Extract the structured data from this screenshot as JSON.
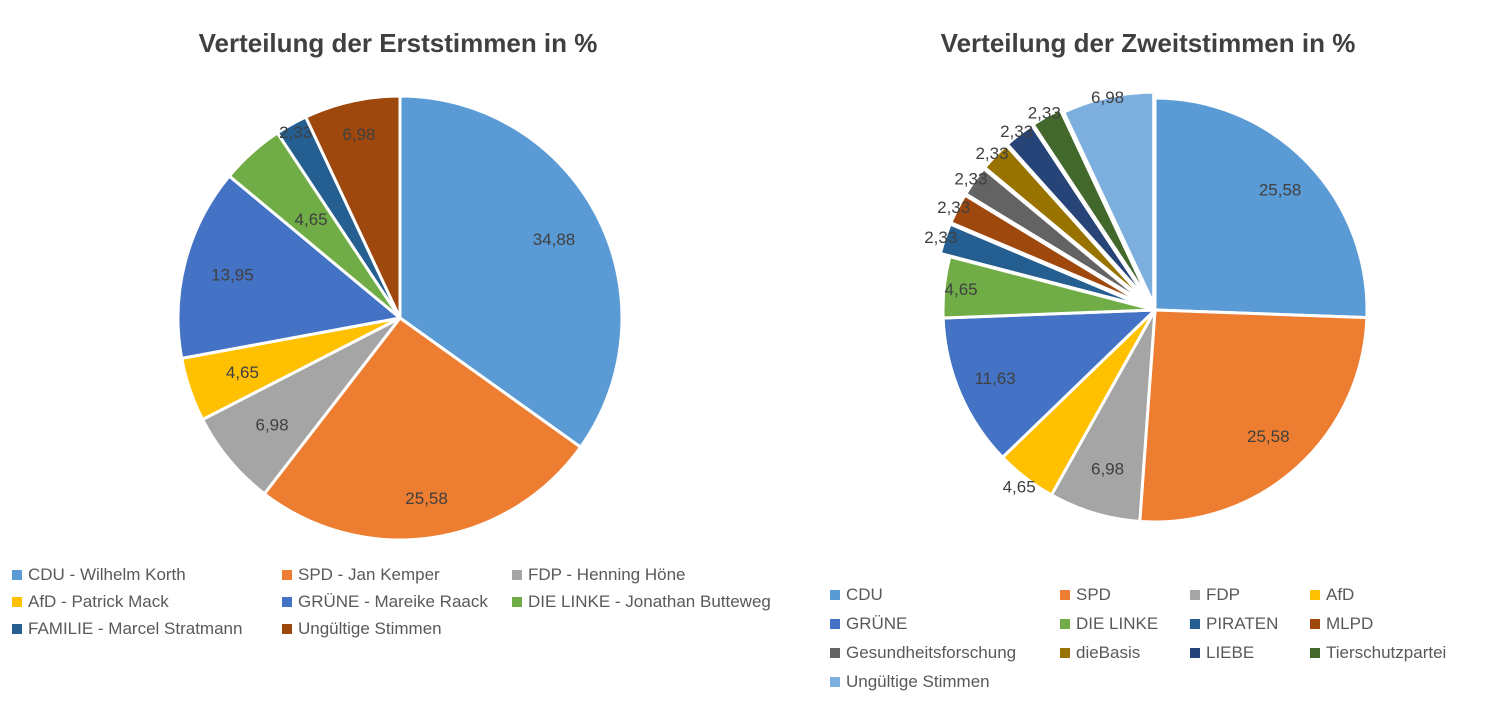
{
  "chart_data": [
    {
      "type": "pie",
      "title": "Verteilung der Erststimmen in %",
      "categories": [
        "CDU - Wilhelm Korth",
        "SPD - Jan Kemper",
        "FDP - Henning Höne",
        "AfD - Patrick Mack",
        "GRÜNE - Mareike Raack",
        "DIE LINKE - Jonathan Butteweg",
        "FAMILIE - Marcel Stratmann",
        "Ungültige Stimmen"
      ],
      "values": [
        34.88,
        25.58,
        6.98,
        4.65,
        13.95,
        4.65,
        2.33,
        6.98
      ],
      "data_labels": [
        "34,88",
        "25,58",
        "6,98",
        "4,65",
        "13,95",
        "4,65",
        "2,33",
        "6,98"
      ],
      "colors": [
        "#5b9bd5",
        "#ed7d31",
        "#a5a5a5",
        "#ffc000",
        "#4472c4",
        "#70ad47",
        "#255e91",
        "#9e480e"
      ],
      "legend_position": "bottom"
    },
    {
      "type": "pie",
      "title": "Verteilung der Zweitstimmen in %",
      "categories": [
        "CDU",
        "SPD",
        "FDP",
        "AfD",
        "GRÜNE",
        "DIE LINKE",
        "PIRATEN",
        "MLPD",
        "Gesundheitsforschung",
        "dieBasis",
        "LIEBE",
        "Tierschutzpartei",
        "Ungültige Stimmen"
      ],
      "values": [
        25.58,
        25.58,
        6.98,
        4.65,
        11.63,
        4.65,
        2.33,
        2.33,
        2.33,
        2.33,
        2.33,
        2.33,
        6.98
      ],
      "data_labels": [
        "25,58",
        "25,58",
        "6,98",
        "4,65",
        "11,63",
        "4,65",
        "2,33",
        "2,33",
        "2,33",
        "2,33",
        "2,33",
        "2,33",
        "6,98"
      ],
      "colors": [
        "#5b9bd5",
        "#ed7d31",
        "#a5a5a5",
        "#ffc000",
        "#4472c4",
        "#70ad47",
        "#255e91",
        "#9e480e",
        "#636363",
        "#997300",
        "#264478",
        "#43682b",
        "#7cafdd"
      ],
      "legend_position": "bottom"
    }
  ]
}
